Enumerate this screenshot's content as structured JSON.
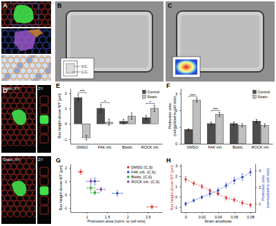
{
  "figure": {
    "panel_labels": [
      "A",
      "B",
      "C",
      "D",
      "E",
      "F",
      "G",
      "H"
    ],
    "inset_labels": [
      "V.C.",
      "C.C."
    ],
    "image_labels": [
      "Static, XY:",
      "ZY:",
      "Strain, XY:",
      "ZY:"
    ]
  },
  "chart_data": [
    {
      "type": "bar",
      "categories": [
        "DMSO",
        "FAK inh.",
        "Blebb.",
        "ROCK inh."
      ],
      "series": [
        {
          "name": "Control",
          "color": "#4d4d4d",
          "values": [
            1.7,
            1.0,
            0.15,
            0.4
          ],
          "errors": [
            0.2,
            0.25,
            0.15,
            0.15
          ]
        },
        {
          "name": "Strain",
          "color": "#bfbfbf",
          "values": [
            -0.9,
            0.1,
            0.5,
            1.0
          ],
          "errors": [
            0.15,
            0.2,
            0.2,
            0.2
          ]
        }
      ],
      "ylabel": "Ras height above WT [μm]",
      "ylim": [
        -1.3,
        2.3
      ],
      "yticks": [
        -1,
        0,
        1,
        2
      ],
      "legend": "upper right",
      "annotations": [
        {
          "category": 0,
          "text": "***"
        },
        {
          "category": 1,
          "text": "*"
        },
        {
          "category": 3,
          "text": "*"
        }
      ]
    },
    {
      "type": "bar",
      "categories": [
        "DMSO",
        "FAK inh.",
        "Blebb.",
        "ROCK inh."
      ],
      "series": [
        {
          "name": "Control",
          "color": "#4d4d4d",
          "values": [
            0.85,
            1.2,
            1.2,
            1.35
          ],
          "errors": [
            0.05,
            0.1,
            0.1,
            0.1
          ]
        },
        {
          "name": "Strain",
          "color": "#bfbfbf",
          "values": [
            2.6,
            1.75,
            1.1,
            1.1
          ],
          "errors": [
            0.12,
            0.12,
            0.1,
            0.1
          ]
        }
      ],
      "ylabel": [
        "Protrusion area",
        "(normalized to cell size)"
      ],
      "ylim": [
        0,
        3.3
      ],
      "yticks": [
        0,
        1,
        2,
        3
      ],
      "legend": "upper right",
      "annotations": [
        {
          "category": 0,
          "text": "***"
        },
        {
          "category": 1,
          "text": "***"
        }
      ]
    },
    {
      "type": "scatter",
      "marker": "circle",
      "series": [
        {
          "name": "DMSO (C,S)",
          "color": "#e0302b",
          "x": [
            0.85,
            2.6
          ],
          "values": [
            1.7,
            -0.9
          ],
          "xerr": [
            0.05,
            0.12
          ],
          "yerr": [
            0.2,
            0.15
          ]
        },
        {
          "name": "FAK inh. (C,S)",
          "color": "#1f4fbf",
          "x": [
            1.2,
            1.75
          ],
          "values": [
            1.0,
            0.1
          ],
          "xerr": [
            0.1,
            0.12
          ],
          "yerr": [
            0.25,
            0.2
          ]
        },
        {
          "name": "Blebb. (C,S)",
          "color": "#2ca02c",
          "x": [
            1.2,
            1.1
          ],
          "values": [
            0.15,
            0.5
          ],
          "xerr": [
            0.1,
            0.1
          ],
          "yerr": [
            0.15,
            0.2
          ]
        },
        {
          "name": "ROCK inh. (C,S)",
          "color": "#7b3fa0",
          "x": [
            1.35,
            1.1
          ],
          "values": [
            0.4,
            1.0
          ],
          "xerr": [
            0.1,
            0.1
          ],
          "yerr": [
            0.15,
            0.2
          ]
        }
      ],
      "xlabel": "Protrusion area (norm. to cell size)",
      "ylabel": "Ras height above WT [μm]",
      "xlim": [
        0.6,
        2.85
      ],
      "xticks": [
        1,
        1.5,
        2,
        2.5
      ],
      "ylim": [
        -1.3,
        2.3
      ],
      "yticks": [
        -1,
        0,
        1,
        2
      ],
      "legend": "upper right"
    },
    {
      "type": "line",
      "x": [
        0,
        0.01,
        0.02,
        0.03,
        0.04,
        0.05,
        0.06,
        0.07,
        0.08
      ],
      "series": [
        {
          "color": "#d62728",
          "values": [
            1.7,
            1.3,
            1.0,
            0.6,
            0.3,
            -0.1,
            -0.3,
            -0.6,
            -0.8
          ],
          "errors": [
            0.25,
            0.2,
            0.2,
            0.2,
            0.2,
            0.2,
            0.2,
            0.2,
            0.2
          ],
          "marker": "circle",
          "line_style": "dashed"
        },
        {
          "color": "#1f3fbf",
          "axis": "y2",
          "values": [
            1.0,
            1.2,
            1.4,
            1.6,
            1.8,
            2.1,
            2.4,
            2.6,
            2.9
          ],
          "errors": [
            0.1,
            0.1,
            0.1,
            0.15,
            0.15,
            0.15,
            0.2,
            0.2,
            0.2
          ],
          "marker": "circle",
          "line_style": "dashed"
        }
      ],
      "xlabel": "Strain amplitude",
      "ylabel": "Ras height above WT [μm]",
      "y2label": [
        "Protrusion area",
        "(normalized to cell size)"
      ],
      "xlim": [
        -0.006,
        0.086
      ],
      "xticks": [
        0,
        0.02,
        0.04,
        0.06,
        0.08
      ],
      "ylim": [
        -1.5,
        3.2
      ],
      "yticks": [
        -1,
        0,
        1,
        2,
        3
      ],
      "y2lim": [
        0.5,
        3.4
      ],
      "y2ticks": [
        1,
        2,
        3
      ]
    }
  ]
}
